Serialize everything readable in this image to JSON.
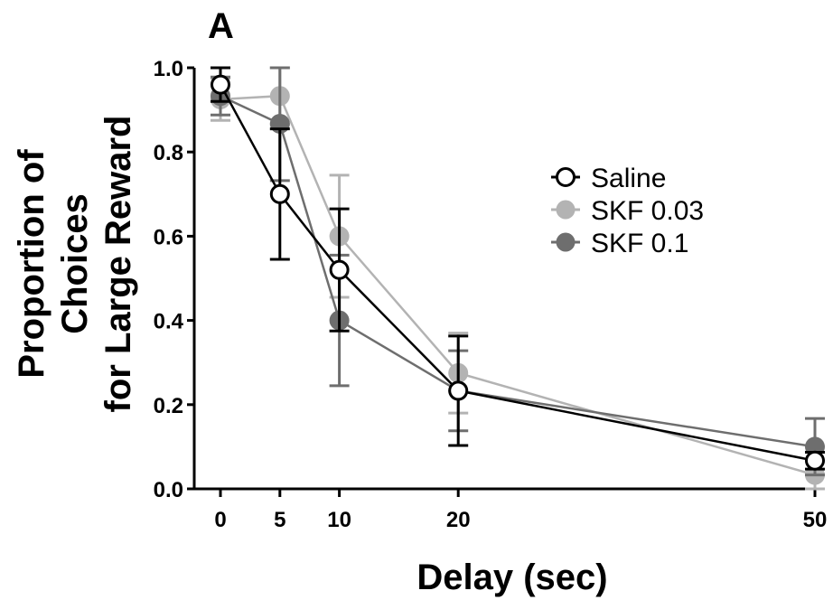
{
  "chart_data": {
    "type": "line",
    "panel_label": "A",
    "xlabel": "Delay (sec)",
    "ylabel_lines": [
      "Proportion of",
      "Choices",
      "for Large Reward"
    ],
    "x": [
      0,
      5,
      10,
      20,
      50
    ],
    "x_ticks": [
      0,
      5,
      10,
      20,
      50
    ],
    "x_tick_labels": [
      "0",
      "5",
      "10",
      "20",
      "50"
    ],
    "y_ticks": [
      0.0,
      0.2,
      0.4,
      0.6,
      0.8,
      1.0
    ],
    "y_tick_labels": [
      "0.0",
      "0.2",
      "0.4",
      "0.6",
      "0.8",
      "1.0"
    ],
    "xlim": [
      0,
      50
    ],
    "ylim": [
      0,
      1.0
    ],
    "grid": false,
    "legend_position": "right",
    "series": [
      {
        "name": "Saline",
        "color": "#000000",
        "marker": "open-circle",
        "values": [
          0.96,
          0.7,
          0.52,
          0.233,
          0.067
        ],
        "errors": [
          0.04,
          0.155,
          0.145,
          0.13,
          0.02
        ]
      },
      {
        "name": "SKF 0.03",
        "color": "#b3b3b3",
        "marker": "filled-circle",
        "values": [
          0.925,
          0.933,
          0.6,
          0.275,
          0.033
        ],
        "errors": [
          0.05,
          0.067,
          0.145,
          0.095,
          0.033
        ]
      },
      {
        "name": "SKF 0.1",
        "color": "#6e6e6e",
        "marker": "filled-circle",
        "values": [
          0.933,
          0.867,
          0.4,
          0.233,
          0.1
        ],
        "errors": [
          0.045,
          0.135,
          0.155,
          0.095,
          0.067
        ]
      }
    ]
  }
}
